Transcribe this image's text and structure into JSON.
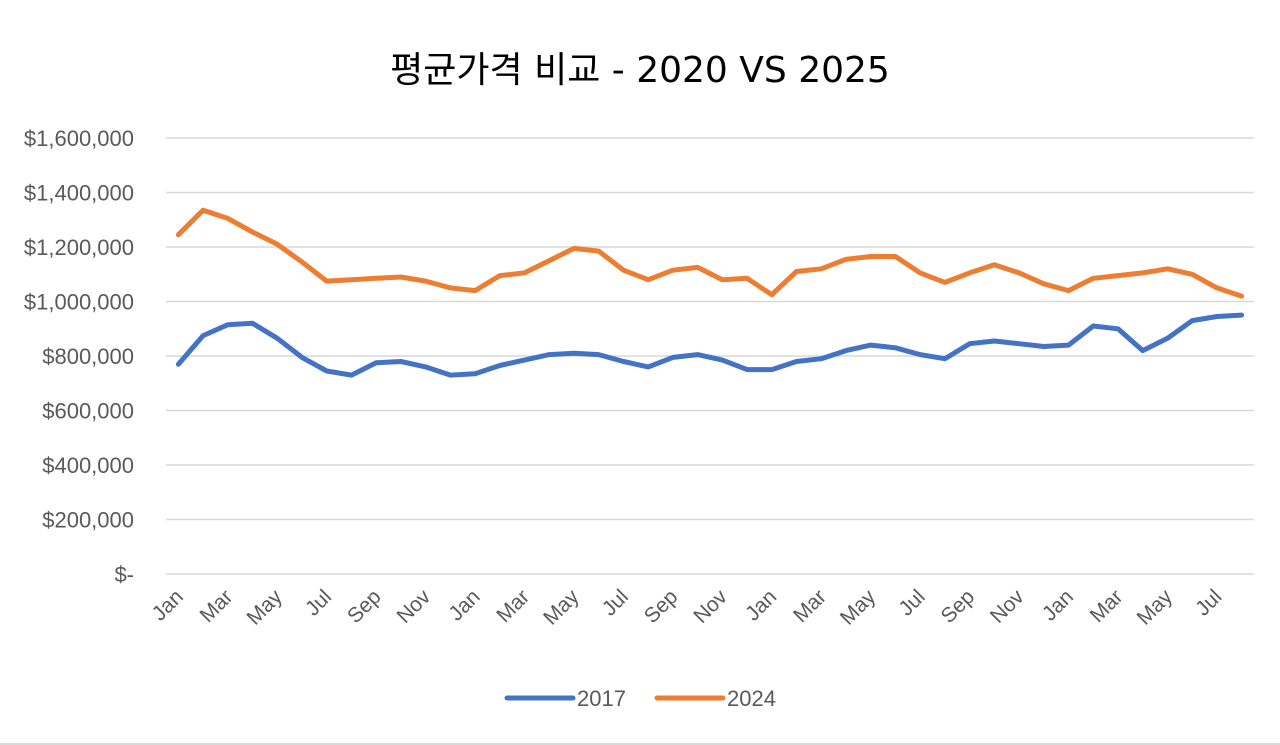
{
  "chart_data": {
    "type": "line",
    "title": "평균가격 비교 - 2020 VS 2025",
    "xlabel": "",
    "ylabel": "",
    "ylim": [
      0,
      1600000
    ],
    "y_ticks": [
      0,
      200000,
      400000,
      600000,
      800000,
      1000000,
      1200000,
      1400000,
      1600000
    ],
    "y_tick_labels": [
      "$-",
      "$200,000",
      "$400,000",
      "$600,000",
      "$800,000",
      "$1,000,000",
      "$1,200,000",
      "$1,400,000",
      "$1,600,000"
    ],
    "grid": true,
    "legend_position": "bottom",
    "categories": [
      "Jan",
      "Feb",
      "Mar",
      "Apr",
      "May",
      "Jun",
      "Jul",
      "Aug",
      "Sep",
      "Oct",
      "Nov",
      "Dec",
      "Jan",
      "Feb",
      "Mar",
      "Apr",
      "May",
      "Jun",
      "Jul",
      "Aug",
      "Sep",
      "Oct",
      "Nov",
      "Dec",
      "Jan",
      "Feb",
      "Mar",
      "Apr",
      "May",
      "Jun",
      "Jul",
      "Aug",
      "Sep",
      "Oct",
      "Nov",
      "Dec",
      "Jan",
      "Feb",
      "Mar",
      "Apr",
      "May",
      "Jun",
      "Jul",
      "Aug"
    ],
    "x_tick_labels": [
      "Jan",
      "Mar",
      "May",
      "Jul",
      "Sep",
      "Nov",
      "Jan",
      "Mar",
      "May",
      "Jul",
      "Sep",
      "Nov",
      "Jan",
      "Mar",
      "May",
      "Jul",
      "Sep",
      "Nov",
      "Jan",
      "Mar",
      "May",
      "Jul"
    ],
    "series": [
      {
        "name": "2017",
        "color": "#4472c4",
        "values": [
          770000,
          875000,
          915000,
          920000,
          865000,
          795000,
          745000,
          730000,
          775000,
          780000,
          760000,
          730000,
          735000,
          765000,
          785000,
          805000,
          810000,
          805000,
          780000,
          760000,
          795000,
          805000,
          785000,
          750000,
          750000,
          780000,
          790000,
          820000,
          840000,
          830000,
          805000,
          790000,
          845000,
          855000,
          845000,
          835000,
          840000,
          910000,
          900000,
          820000,
          865000,
          930000,
          945000,
          950000
        ]
      },
      {
        "name": "2024",
        "color": "#ed7d31",
        "values": [
          1245000,
          1335000,
          1305000,
          1255000,
          1210000,
          1145000,
          1075000,
          1080000,
          1085000,
          1090000,
          1075000,
          1050000,
          1040000,
          1095000,
          1105000,
          1150000,
          1195000,
          1185000,
          1115000,
          1080000,
          1115000,
          1125000,
          1080000,
          1085000,
          1025000,
          1110000,
          1120000,
          1155000,
          1165000,
          1165000,
          1105000,
          1070000,
          1105000,
          1135000,
          1105000,
          1065000,
          1040000,
          1085000,
          1095000,
          1105000,
          1120000,
          1100000,
          1050000,
          1020000
        ]
      }
    ]
  }
}
